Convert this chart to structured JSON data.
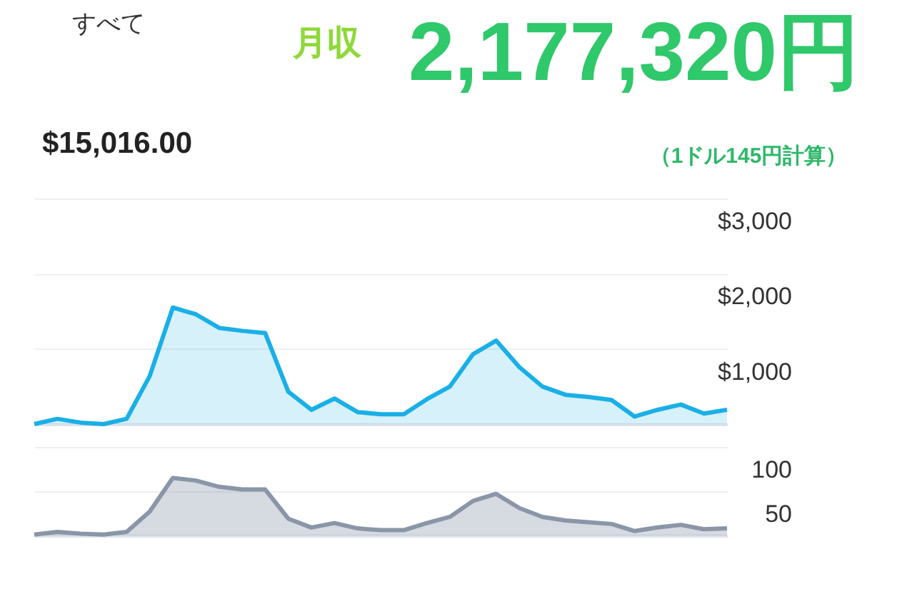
{
  "chart_data": [
    {
      "type": "area",
      "annotations": [
        "すべて",
        "$15,016.00",
        "月収",
        "2,177,320円",
        "（1ドル145円計算）"
      ],
      "categories": [
        null,
        null,
        null,
        null,
        null,
        null,
        null,
        null,
        null,
        null,
        null,
        null,
        null,
        null,
        null,
        null,
        null,
        null,
        null,
        null,
        null,
        null,
        null,
        null,
        null,
        null,
        null,
        null,
        null,
        null,
        null
      ],
      "series": [
        {
          "color": "#1aafe6",
          "values": [
            0,
            70,
            20,
            0,
            70,
            640,
            1550,
            1460,
            1280,
            1240,
            1210,
            430,
            190,
            340,
            160,
            130,
            130,
            330,
            500,
            930,
            1110,
            760,
            500,
            390,
            360,
            320,
            100,
            190,
            260,
            140,
            190
          ]
        }
      ],
      "ylim": [
        0,
        3000
      ],
      "yticks": [
        {
          "value": 0,
          "label": null
        },
        {
          "value": 1000,
          "label": "$1,000"
        },
        {
          "value": 2000,
          "label": "$2,000"
        },
        {
          "value": 3000,
          "label": "$3,000"
        }
      ],
      "grid": "y",
      "tick_labels": "y",
      "marker": "none"
    },
    {
      "type": "area",
      "categories": [
        null,
        null,
        null,
        null,
        null,
        null,
        null,
        null,
        null,
        null,
        null,
        null,
        null,
        null,
        null,
        null,
        null,
        null,
        null,
        null,
        null,
        null,
        null,
        null,
        null,
        null,
        null,
        null,
        null,
        null,
        null
      ],
      "series": [
        {
          "color": "#8a96a8",
          "values": [
            1,
            4,
            2,
            1,
            4,
            27,
            65,
            62,
            55,
            52,
            52,
            19,
            9,
            14,
            8,
            6,
            6,
            14,
            21,
            39,
            47,
            31,
            21,
            17,
            15,
            13,
            5,
            9,
            12,
            7,
            8
          ]
        }
      ],
      "ylim": [
        0,
        100
      ],
      "yticks": [
        {
          "value": 0,
          "label": null
        },
        50,
        100
      ],
      "grid": "y",
      "tick_labels": "y",
      "marker": "none"
    }
  ]
}
